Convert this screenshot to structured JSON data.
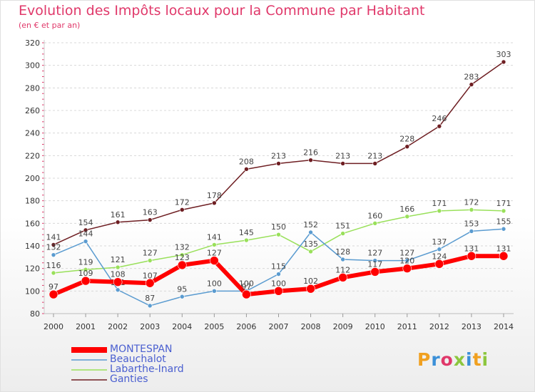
{
  "header": {
    "title": "Evolution des Impôts locaux pour la Commune par Habitant",
    "subtitle": "(en € et par an)"
  },
  "colors": {
    "MONTESPAN": "#ff0000",
    "Beauchalot": "#5a9bd0",
    "Labarthe-Inard": "#99e05a",
    "Ganties": "#6e1e22",
    "title": "#e0386a",
    "legend_text": "#4a5fd0"
  },
  "chart_data": {
    "type": "line",
    "title": "Evolution des Impôts locaux pour la Commune par Habitant",
    "subtitle": "(en € et par an)",
    "x": [
      2000,
      2001,
      2002,
      2003,
      2004,
      2005,
      2006,
      2007,
      2008,
      2009,
      2010,
      2011,
      2012,
      2013,
      2014
    ],
    "ylim": [
      80,
      320
    ],
    "yticks": [
      80,
      100,
      120,
      140,
      160,
      180,
      200,
      220,
      240,
      260,
      280,
      300,
      320
    ],
    "grid": "horizontal",
    "legend_position": "bottom-left",
    "series": [
      {
        "name": "Ganties",
        "values": [
          141,
          154,
          161,
          163,
          172,
          178,
          208,
          213,
          216,
          213,
          213,
          228,
          246,
          283,
          303
        ]
      },
      {
        "name": "Labarthe-Inard",
        "values": [
          116,
          119,
          121,
          127,
          132,
          141,
          145,
          150,
          135,
          151,
          160,
          166,
          171,
          172,
          171
        ]
      },
      {
        "name": "Beauchalot",
        "values": [
          132,
          144,
          101,
          87,
          95,
          100,
          100,
          115,
          152,
          128,
          127,
          127,
          137,
          153,
          155
        ]
      },
      {
        "name": "MONTESPAN",
        "values": [
          97,
          109,
          108,
          107,
          123,
          127,
          97,
          100,
          102,
          112,
          117,
          120,
          124,
          131,
          131
        ]
      }
    ]
  },
  "legend": {
    "items": [
      {
        "label": "MONTESPAN"
      },
      {
        "label": "Beauchalot"
      },
      {
        "label": "Labarthe-Inard"
      },
      {
        "label": "Ganties"
      }
    ]
  },
  "logo": {
    "letters": [
      "P",
      "r",
      "o",
      "x",
      "i",
      "t",
      "i"
    ],
    "colors": [
      "#f0a020",
      "#3a8fd8",
      "#e0386a",
      "#8cc63e",
      "#3a8fd8",
      "#f0a020",
      "#8cc63e"
    ]
  }
}
